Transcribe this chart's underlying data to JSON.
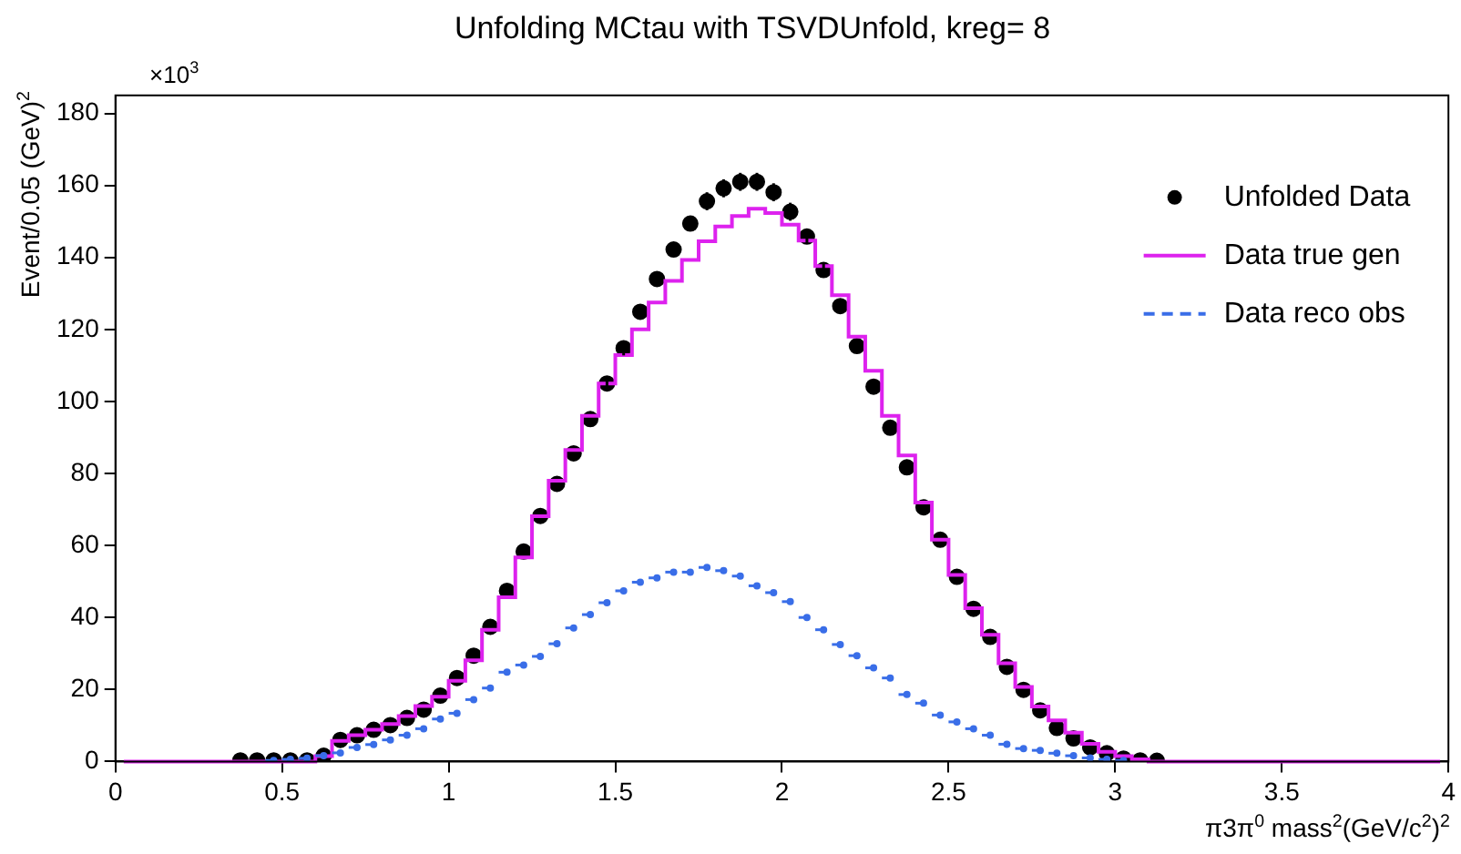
{
  "chart_data": {
    "type": "step",
    "title": "Unfolding MCtau with TSVDUnfold, kreg= 8",
    "xlabel": "π3π$^{0}$ mass$^{2}$(GeV/c$^{2}$)$^{2}$",
    "ylabel": "Event/0.05 (GeV)$^{2}$",
    "annotations": [
      "×10$^{3}$"
    ],
    "xlim": [
      0,
      4
    ],
    "xticks": [
      0,
      0.5,
      1,
      1.5,
      2,
      2.5,
      3,
      3.5,
      4
    ],
    "ylim": [
      0,
      185
    ],
    "yticks": [
      0,
      20,
      40,
      60,
      80,
      100,
      120,
      140,
      160,
      180
    ],
    "grid": false,
    "legend": "top right",
    "series": [
      {
        "name": "Unfolded Data",
        "type": "scatter",
        "marker": "circle",
        "color": "#000000",
        "x": [
          0.375,
          0.425,
          0.475,
          0.525,
          0.575,
          0.625,
          0.675,
          0.725,
          0.775,
          0.825,
          0.875,
          0.925,
          0.975,
          1.025,
          1.075,
          1.125,
          1.175,
          1.225,
          1.275,
          1.325,
          1.375,
          1.425,
          1.475,
          1.525,
          1.575,
          1.625,
          1.675,
          1.725,
          1.775,
          1.825,
          1.875,
          1.925,
          1.975,
          2.025,
          2.075,
          2.125,
          2.175,
          2.225,
          2.275,
          2.325,
          2.375,
          2.425,
          2.475,
          2.525,
          2.575,
          2.625,
          2.675,
          2.725,
          2.775,
          2.825,
          2.875,
          2.925,
          2.975,
          3.025,
          3.075,
          3.125
        ],
        "values": [
          0.3,
          0.3,
          0.3,
          0.3,
          0.3,
          1.6,
          6.0,
          7.3,
          8.8,
          10.1,
          12.1,
          14.4,
          18.3,
          23.2,
          29.4,
          37.4,
          47.4,
          58.3,
          68.2,
          77.1,
          85.6,
          95.1,
          105,
          114.8,
          124.9,
          134,
          142.2,
          149.4,
          155.6,
          159.2,
          161,
          161,
          158.1,
          152.7,
          145.8,
          136.5,
          126.5,
          115.4,
          104.1,
          92.7,
          81.7,
          70.6,
          61.6,
          51.3,
          42.4,
          34.6,
          26.3,
          19.9,
          14.2,
          9.3,
          6.4,
          3.9,
          2.3,
          0.8,
          0.3,
          0.2
        ],
        "errors": [
          null,
          null,
          null,
          null,
          null,
          null,
          null,
          null,
          null,
          null,
          null,
          null,
          null,
          null,
          null,
          null,
          null,
          null,
          null,
          null,
          null,
          null,
          2,
          2,
          2,
          2,
          2,
          2,
          2.5,
          2.5,
          2.5,
          2.5,
          2.5,
          2.5,
          2,
          2,
          2,
          2,
          2,
          null,
          null,
          null,
          null,
          null,
          null,
          null,
          null,
          null,
          null,
          null,
          null,
          null,
          null,
          null,
          null,
          null
        ]
      },
      {
        "name": "Data true gen",
        "color": "#dd22ee",
        "line_style": "solid",
        "x": [
          0.025,
          0.075,
          0.125,
          0.175,
          0.225,
          0.275,
          0.325,
          0.375,
          0.425,
          0.475,
          0.525,
          0.575,
          0.625,
          0.675,
          0.725,
          0.775,
          0.825,
          0.875,
          0.925,
          0.975,
          1.025,
          1.075,
          1.125,
          1.175,
          1.225,
          1.275,
          1.325,
          1.375,
          1.425,
          1.475,
          1.525,
          1.575,
          1.625,
          1.675,
          1.725,
          1.775,
          1.825,
          1.875,
          1.925,
          1.975,
          2.025,
          2.075,
          2.125,
          2.175,
          2.225,
          2.275,
          2.325,
          2.375,
          2.425,
          2.475,
          2.525,
          2.575,
          2.625,
          2.675,
          2.725,
          2.775,
          2.825,
          2.875,
          2.925,
          2.975,
          3.025,
          3.075,
          3.125,
          3.175,
          3.225,
          3.275,
          3.325,
          3.375,
          3.425,
          3.475,
          3.525,
          3.575,
          3.625,
          3.675,
          3.725,
          3.775,
          3.825,
          3.875,
          3.925,
          3.975
        ],
        "values": [
          0,
          0,
          0,
          0,
          0,
          0,
          0,
          0,
          0,
          0,
          0,
          0,
          1.5,
          5.7,
          7.3,
          8.8,
          10.4,
          12.6,
          15.4,
          18.0,
          22.4,
          28.1,
          36.6,
          45.6,
          56.7,
          68.1,
          78.0,
          86.5,
          96.0,
          105,
          112.9,
          120,
          127.5,
          133.5,
          139.3,
          144.5,
          148.6,
          151.5,
          153.5,
          152.3,
          149.1,
          144.7,
          137.6,
          129.5,
          118.0,
          108.5,
          96.0,
          85.0,
          71.9,
          61.6,
          51.8,
          42.6,
          35.2,
          27.3,
          20.7,
          15.3,
          11.4,
          8.0,
          4.9,
          2.7,
          1.5,
          0.6,
          0,
          0,
          0,
          0,
          0,
          0,
          0,
          0,
          0,
          0,
          0,
          0,
          0,
          0,
          0,
          0,
          0,
          0
        ]
      },
      {
        "name": "Data reco obs",
        "type": "scatter",
        "color": "#3a6ee8",
        "line_style": "dashed",
        "x": [
          0.475,
          0.525,
          0.575,
          0.625,
          0.675,
          0.725,
          0.775,
          0.825,
          0.875,
          0.925,
          0.975,
          1.025,
          1.075,
          1.125,
          1.175,
          1.225,
          1.275,
          1.325,
          1.375,
          1.425,
          1.475,
          1.525,
          1.575,
          1.625,
          1.675,
          1.725,
          1.775,
          1.825,
          1.875,
          1.925,
          1.975,
          2.025,
          2.075,
          2.125,
          2.175,
          2.225,
          2.275,
          2.325,
          2.375,
          2.425,
          2.475,
          2.525,
          2.575,
          2.625,
          2.675,
          2.725,
          2.775,
          2.825,
          2.875,
          2.925,
          2.975,
          3.025
        ],
        "values": [
          0.3,
          0.6,
          0.9,
          1.6,
          2.4,
          3.9,
          4.7,
          6.0,
          7.3,
          9.1,
          11.8,
          13.4,
          17.2,
          20.4,
          24.8,
          26.8,
          29.2,
          32.7,
          37.1,
          40.8,
          44.1,
          47.4,
          49.8,
          51.0,
          52.6,
          52.6,
          53.9,
          53.0,
          51.5,
          48.8,
          46.9,
          44.4,
          40.0,
          36.6,
          32.5,
          29.4,
          26.0,
          23.2,
          18.6,
          16.2,
          12.9,
          11.0,
          9.1,
          7.3,
          4.8,
          3.6,
          3.1,
          2.3,
          1.6,
          1.0,
          0.6,
          0.3
        ],
        "xerrors": [
          0.025,
          0.025,
          0.025,
          0.025,
          0.025,
          0.025,
          0.025,
          0.025,
          0.025,
          0.025,
          0.025,
          0.025,
          0.025,
          0.025,
          0.025,
          0.025,
          0.025,
          0.025,
          0.025,
          0.025,
          0.025,
          0.025,
          0.025,
          0.025,
          0.025,
          0.025,
          0.025,
          0.025,
          0.025,
          0.025,
          0.025,
          0.025,
          0.025,
          0.025,
          0.025,
          0.025,
          0.025,
          0.025,
          0.025,
          0.025,
          0.025,
          0.025,
          0.025,
          0.025,
          0.025,
          0.025,
          0.025,
          0.025,
          0.025,
          0.025,
          0.025,
          0.025
        ]
      }
    ]
  }
}
